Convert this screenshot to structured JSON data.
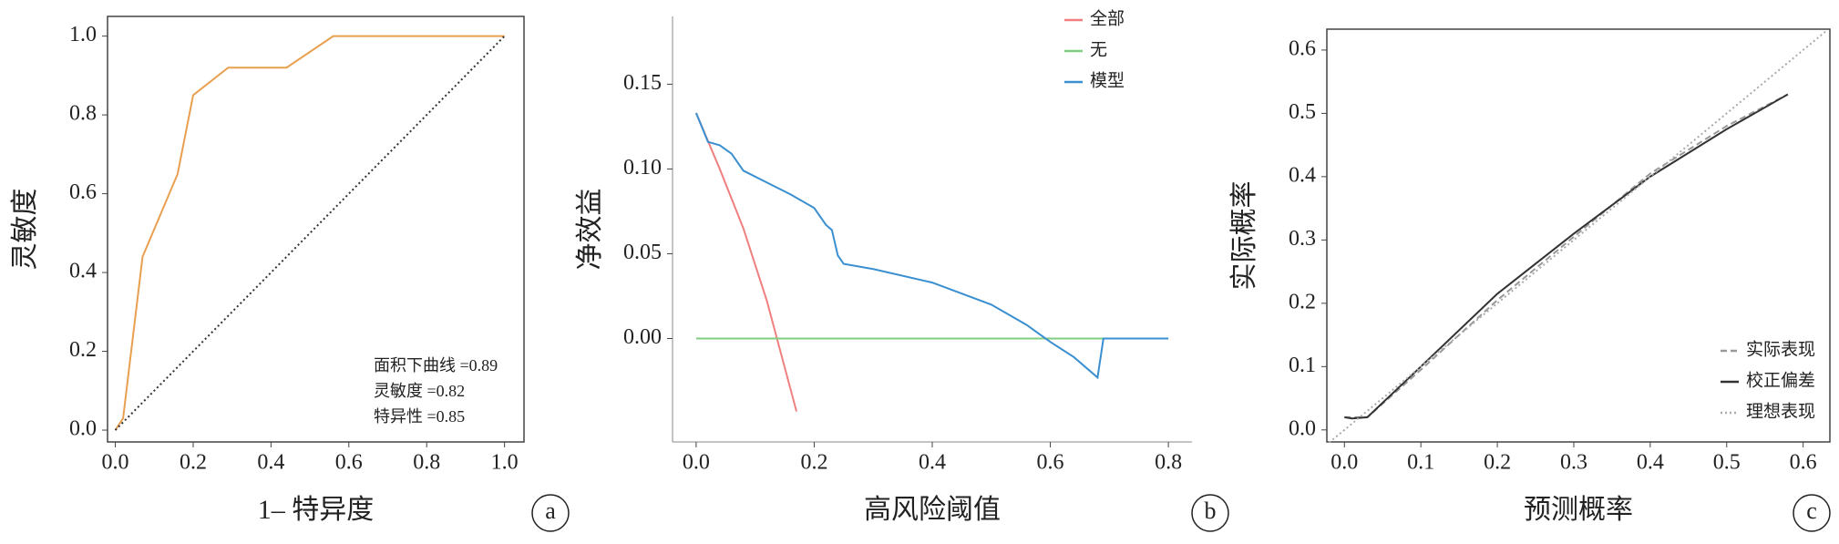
{
  "chart_data": [
    {
      "type": "line",
      "panel": "a",
      "x_label": "1– 特异度",
      "y_label": "灵敏度",
      "frame": true,
      "xlim": [
        -0.02,
        1.05
      ],
      "ylim": [
        -0.03,
        1.05
      ],
      "xticks": [
        {
          "value": 0,
          "label": "0.0"
        },
        0.2,
        0.4,
        0.6,
        0.8,
        {
          "value": 1,
          "label": "1.0"
        }
      ],
      "yticks": [
        {
          "value": 0,
          "label": "0.0"
        },
        0.2,
        0.4,
        0.6,
        0.8,
        {
          "value": 1,
          "label": "1.0"
        }
      ],
      "series": [
        {
          "color": "#e8a050",
          "dash": "solid",
          "x": [
            0,
            0.02,
            0.07,
            0.16,
            0.2,
            0.29,
            0.44,
            0.56,
            1.0
          ],
          "values": [
            0,
            0.03,
            0.44,
            0.65,
            0.85,
            0.92,
            0.92,
            1.0,
            1.0
          ]
        },
        {
          "color": "#333333",
          "dash": "dotted",
          "x": [
            0,
            1.0
          ],
          "values": [
            0,
            1.0
          ]
        }
      ],
      "annotations": [
        "面积下曲线 =0.89",
        "灵敏度 =0.82",
        "特异性 =0.85"
      ]
    },
    {
      "type": "line",
      "panel": "b",
      "x_label": "高风险阈值",
      "y_label": "净效益",
      "frame": false,
      "legend": "upper right",
      "xlim": [
        -0.04,
        0.84
      ],
      "ylim": [
        -0.061,
        0.19
      ],
      "xticks": [
        {
          "value": 0,
          "label": "0.0"
        },
        0.2,
        0.4,
        0.6,
        0.8
      ],
      "yticks": [
        {
          "value": 0,
          "label": "0.00"
        },
        0.05,
        {
          "value": 0.1,
          "label": "0.10"
        },
        0.15
      ],
      "series": [
        {
          "name": "全部",
          "color": "#f08080",
          "dash": "solid",
          "x": [
            0,
            0.04,
            0.08,
            0.12,
            0.17
          ],
          "values": [
            0.133,
            0.1,
            0.065,
            0.022,
            -0.043
          ]
        },
        {
          "name": "无",
          "color": "#80cc80",
          "dash": "solid",
          "x": [
            0,
            0.8
          ],
          "values": [
            0,
            0
          ]
        },
        {
          "name": "模型",
          "color": "#3a8fd0",
          "dash": "solid",
          "x": [
            0,
            0.02,
            0.04,
            0.06,
            0.08,
            0.12,
            0.16,
            0.2,
            0.22,
            0.23,
            0.24,
            0.25,
            0.3,
            0.4,
            0.5,
            0.56,
            0.6,
            0.64,
            0.68,
            0.69,
            0.8
          ],
          "values": [
            0.133,
            0.116,
            0.114,
            0.109,
            0.099,
            0.092,
            0.085,
            0.077,
            0.067,
            0.064,
            0.049,
            0.044,
            0.041,
            0.033,
            0.02,
            0.008,
            -0.002,
            -0.011,
            -0.023,
            0,
            0
          ]
        }
      ]
    },
    {
      "type": "line",
      "panel": "c",
      "x_label": "预测概率",
      "y_label": "实际概率",
      "frame": true,
      "legend": "lower right",
      "xlim": [
        -0.023,
        0.635
      ],
      "ylim": [
        -0.019,
        0.633
      ],
      "xticks": [
        {
          "value": 0,
          "label": "0.0"
        },
        0.1,
        0.2,
        0.3,
        0.4,
        0.5,
        0.6
      ],
      "yticks": [
        {
          "value": 0,
          "label": "0.0"
        },
        0.1,
        0.2,
        0.3,
        0.4,
        0.5,
        0.6
      ],
      "series": [
        {
          "name": "实际表现",
          "color": "#999999",
          "dash": "dashed",
          "x": [
            0,
            0.03,
            0.1,
            0.2,
            0.3,
            0.4,
            0.5,
            0.58
          ],
          "values": [
            0.02,
            0.02,
            0.095,
            0.205,
            0.305,
            0.405,
            0.48,
            0.53
          ]
        },
        {
          "name": "校正偏差",
          "color": "#333333",
          "dash": "solid",
          "x": [
            0,
            0.01,
            0.03,
            0.1,
            0.2,
            0.3,
            0.4,
            0.5,
            0.58
          ],
          "values": [
            0.02,
            0.018,
            0.02,
            0.1,
            0.215,
            0.31,
            0.4,
            0.475,
            0.53
          ]
        },
        {
          "name": "理想表现",
          "color": "#aaaaaa",
          "dash": "dotted",
          "x": [
            -0.02,
            0.63
          ],
          "values": [
            -0.02,
            0.63
          ]
        }
      ]
    }
  ]
}
